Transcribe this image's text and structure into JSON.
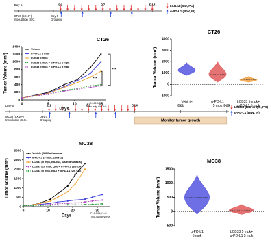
{
  "timelines": [
    {
      "start": "Day-5",
      "inoculation": "CT26 (5X10⁵)\nInoculation (S.C.)",
      "grouping": "Day 0\nGrouping",
      "days": [
        "D1",
        "D7",
        "D14"
      ],
      "legend": [
        "LCB33 (BID, PO)",
        "α-PD-L1 (BIW, IP)"
      ]
    },
    {
      "start": "Day-5",
      "inoculation": "MC38 (5X10⁵)\nInoculation (S.C.)",
      "grouping": "Day 0\nGrouping",
      "days": [
        "D1",
        "D7",
        "D14",
        "D21",
        "D28"
      ],
      "legend": [
        "LCB33 (BID or QD, PO)",
        "α-PD-L1 (BIW, IP)"
      ],
      "phase": "Monitor tumor growth"
    }
  ],
  "chart_data": [
    {
      "type": "line",
      "title": "CT26",
      "x_label": "Days",
      "y_label": "Tumor Volume (mm³)",
      "x": [
        0,
        5,
        8,
        10.5,
        13,
        15
      ],
      "series": [
        {
          "name": "Vehicle",
          "color": "#000000",
          "style": "solid",
          "values": [
            50,
            200,
            400,
            530,
            850,
            1200
          ]
        },
        {
          "name": "α-PD-L1 5 mpk",
          "color": "#3b3bd9",
          "style": "solid",
          "values": [
            50,
            180,
            350,
            500,
            700,
            1000
          ]
        },
        {
          "name": "LCB33 5 mpk",
          "color": "#f0a030",
          "style": "solid",
          "values": [
            50,
            170,
            330,
            450,
            600,
            750
          ]
        },
        {
          "name": "LCB33 2 mpk + α-PD-L1 5 mpk",
          "color": "#2e9e3e",
          "style": "dashed",
          "values": [
            50,
            150,
            250,
            300,
            370,
            400
          ]
        },
        {
          "name": "LCB33 5 mpk + α-PD-L1 5 mpk",
          "color": "#b040c0",
          "style": "dashed",
          "values": [
            50,
            150,
            230,
            280,
            330,
            370
          ]
        }
      ],
      "xlim": [
        0,
        16
      ],
      "ylim": [
        0,
        1400
      ],
      "xticks": [
        0,
        5,
        10,
        15
      ],
      "yticks": [
        0,
        200,
        400,
        600,
        800,
        1000,
        1200,
        1400
      ],
      "annotations": [
        "***",
        "***",
        "p<0.001 N=5",
        "Two-way ANOVA"
      ]
    },
    {
      "type": "violin",
      "title": "CT26",
      "y_label": "Tumor Volume (mm³)",
      "categories": [
        "Vehicle",
        "α-PD-L1\n5 mpk",
        "LCB33 5 mpk+\nα-PD-L1 5 mpk"
      ],
      "colors": [
        "#5555e0",
        "#e05a5a",
        "#f0a040"
      ],
      "medians": [
        1250,
        900,
        400
      ],
      "ranges": [
        [
          800,
          1900
        ],
        [
          200,
          2000
        ],
        [
          200,
          700
        ]
      ],
      "ylim": [
        -1000,
        4000
      ],
      "yticks": [
        -1000,
        0,
        1000,
        2000,
        3000,
        4000
      ]
    },
    {
      "type": "line",
      "title": "MC38",
      "x_label": "Days",
      "y_label": "Tumor Volume (mm³)",
      "x": [
        0,
        4,
        7,
        11,
        14,
        18,
        21,
        25,
        28,
        32
      ],
      "series": [
        {
          "name": "Vehicle (3/6 Euthanasia)",
          "color": "#000000",
          "style": "solid",
          "values": [
            50,
            100,
            200,
            400,
            700,
            1100,
            1700,
            2300,
            null,
            null
          ]
        },
        {
          "name": "α-PD-L1 (5 mpk, 2QWx2)",
          "color": "#3b3bd9",
          "style": "solid",
          "values": [
            50,
            80,
            120,
            180,
            250,
            300,
            350,
            400,
            500,
            650
          ]
        },
        {
          "name": "LCB33 (5 mpk, BIDx14, 3/6 Euthanasia)",
          "color": "#f0a030",
          "style": "solid",
          "values": [
            50,
            100,
            180,
            300,
            500,
            800,
            1200,
            2000,
            null,
            null
          ]
        },
        {
          "name": "LCB33 (10 mpk, QD) + α-PD-L1 (1/6 CR)",
          "color": "#b040c0",
          "style": "dashed",
          "values": [
            50,
            80,
            100,
            120,
            150,
            180,
            200,
            250,
            300,
            350
          ]
        },
        {
          "name": "LCB33 (5 mpk, BID) + α-PD-L1 (2/6 CR)",
          "color": "#2e9e3e",
          "style": "dashed",
          "values": [
            50,
            60,
            70,
            80,
            90,
            100,
            100,
            110,
            120,
            150
          ]
        }
      ],
      "xlim": [
        0,
        35
      ],
      "ylim": [
        0,
        3000
      ],
      "xticks": [
        0,
        10,
        20,
        30
      ],
      "yticks": [
        0,
        500,
        1000,
        1500,
        2000,
        2500,
        3000
      ],
      "annotations": [
        "P<0.001, N=5",
        "Two-way ANOVA"
      ]
    },
    {
      "type": "violin",
      "title": "MC38",
      "y_label": "Tumor Volume (mm³)",
      "categories": [
        "α-PD-L1\n5 mpk",
        "LCB33 5 mpk+\nα-PD-L1 5 mpk"
      ],
      "colors": [
        "#5555e0",
        "#e05a5a"
      ],
      "medians": [
        500,
        50
      ],
      "ranges": [
        [
          -100,
          1300
        ],
        [
          -100,
          250
        ]
      ],
      "ylim": [
        -500,
        1500
      ],
      "yticks": [
        -500,
        0,
        500,
        1000,
        1500
      ]
    }
  ]
}
